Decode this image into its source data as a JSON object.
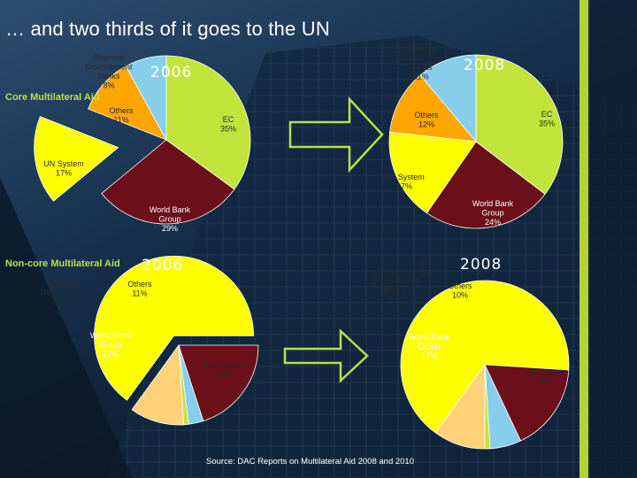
{
  "slide": {
    "title": "… and two thirds of  it goes to the UN",
    "source": "Source:  DAC Reports on Multilateral Aid 2008 and 2010",
    "section_core": "Core Multilateral Aid",
    "section_noncore": "Non-core Multilateral Aid"
  },
  "colors": {
    "un_system": "#ffff00",
    "ec": "#c2e339",
    "world_bank": "#6b0f1a",
    "regional_banks": "#87ceeb",
    "others_core": "#ffa500",
    "others_noncore": "#ffd27a",
    "label_dark": "#2b2b2b",
    "label_light": "#ffffff"
  },
  "chart_data": [
    {
      "type": "pie",
      "title": "2006",
      "section": "Core Multilateral Aid",
      "series": [
        {
          "name": "EC",
          "label": "EC 35%",
          "value": 35
        },
        {
          "name": "World Bank Group",
          "label": "World Bank Group 29%",
          "value": 29
        },
        {
          "name": "UN System",
          "label": "UN System 17%",
          "value": 17
        },
        {
          "name": "Others",
          "label": "Others 11%",
          "value": 11
        },
        {
          "name": "Regional Development Banks",
          "label": "Regional Development Banks 8%",
          "value": 8
        }
      ]
    },
    {
      "type": "pie",
      "title": "2008",
      "section": "Core Multilateral Aid",
      "series": [
        {
          "name": "EC",
          "label": "EC 35%",
          "value": 35
        },
        {
          "name": "World Bank Group",
          "label": "World Bank Group 24%",
          "value": 24
        },
        {
          "name": "UN System",
          "label": "UN System 17%",
          "value": 17
        },
        {
          "name": "Others",
          "label": "Others 12%",
          "value": 12
        },
        {
          "name": "Regional Development Banks",
          "label": "Regional Development Banks 11%",
          "value": 11
        }
      ]
    },
    {
      "type": "pie",
      "title": "2006",
      "section": "Non-core Multilateral Aid",
      "series": [
        {
          "name": "UN System",
          "label": "UN System 65%",
          "value": 65
        },
        {
          "name": "World Bank Group",
          "label": "World Bank Group 20%",
          "value": 20
        },
        {
          "name": "Regional Development Banks",
          "label": "Regional Development Banks 3%",
          "value": 3
        },
        {
          "name": "EC",
          "label": "EC 1%",
          "value": 1
        },
        {
          "name": "Others",
          "label": "Others 11%",
          "value": 11
        }
      ]
    },
    {
      "type": "pie",
      "title": "2008",
      "section": "Non-core Multilateral Aid",
      "series": [
        {
          "name": "UN System",
          "label": "UN System 66%",
          "value": 66
        },
        {
          "name": "World Bank Group",
          "label": "World Bank Group 17%",
          "value": 17
        },
        {
          "name": "Regional Development Banks",
          "label": "Regional Development Banks 6%",
          "value": 6
        },
        {
          "name": "EC",
          "label": "EC 1%",
          "value": 1
        },
        {
          "name": "Others",
          "label": "Others 10%",
          "value": 10
        }
      ]
    }
  ]
}
